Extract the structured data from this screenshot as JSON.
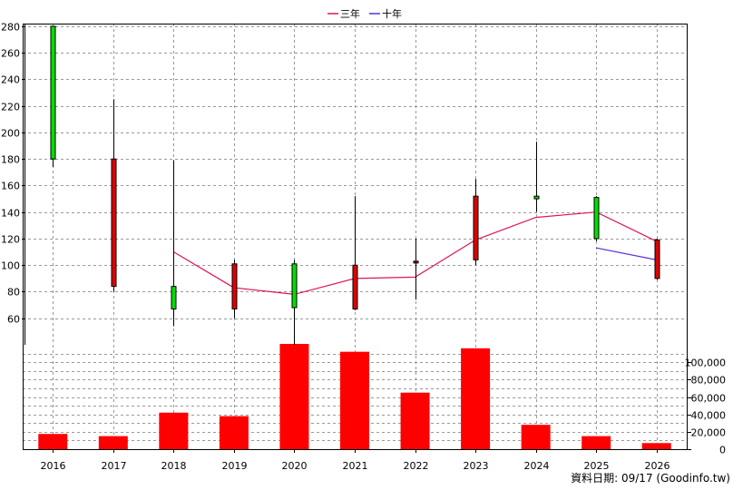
{
  "chart_data": {
    "type": "candlestick",
    "categories": [
      "2016",
      "2017",
      "2018",
      "2019",
      "2020",
      "2021",
      "2022",
      "2023",
      "2024",
      "2025",
      "2026"
    ],
    "price": {
      "ylim": [
        40,
        282
      ],
      "yticks": [
        "60",
        "80",
        "100",
        "120",
        "140",
        "160",
        "180",
        "200",
        "220",
        "240",
        "260",
        "280"
      ],
      "candles": [
        {
          "open": 180,
          "close": 280,
          "high": 280,
          "low": 174
        },
        {
          "open": 180,
          "close": 84,
          "high": 225,
          "low": 80
        },
        {
          "open": 67,
          "close": 84,
          "high": 179,
          "low": 54
        },
        {
          "open": 101,
          "close": 67,
          "high": 104,
          "low": 60
        },
        {
          "open": 68,
          "close": 101,
          "high": 104,
          "low": 40
        },
        {
          "open": 100,
          "close": 67,
          "high": 152,
          "low": 66
        },
        {
          "open": 103,
          "close": 102,
          "high": 120,
          "low": 74
        },
        {
          "open": 152,
          "close": 104,
          "high": 165,
          "low": 100
        },
        {
          "open": 150,
          "close": 152,
          "high": 193,
          "low": 140
        },
        {
          "open": 120,
          "close": 151,
          "high": 152,
          "low": 118
        },
        {
          "open": 119,
          "close": 90,
          "high": 120,
          "low": 89
        }
      ],
      "series": [
        {
          "name": "三年",
          "color": "#e0115f",
          "values": [
            null,
            null,
            110,
            83,
            78,
            90,
            91,
            119,
            136,
            140,
            118
          ]
        },
        {
          "name": "十年",
          "color": "#5b2fd6",
          "values": [
            null,
            null,
            null,
            null,
            null,
            null,
            null,
            null,
            null,
            113,
            104
          ]
        }
      ],
      "up_color": "#00e000",
      "down_color": "#e00000"
    },
    "volume": {
      "ylim": [
        0,
        120000
      ],
      "yticks": [
        "0",
        "20,000",
        "40,000",
        "60,000",
        "80,000",
        "100,000"
      ],
      "values": [
        17500,
        15000,
        42000,
        38000,
        121000,
        112000,
        65000,
        116000,
        28000,
        15000,
        7000
      ],
      "color": "#ff0000"
    },
    "legend_position": "top-center",
    "grid": true
  },
  "footer": {
    "source_label": "資料日期: 09/17  (Goodinfo.tw)"
  }
}
